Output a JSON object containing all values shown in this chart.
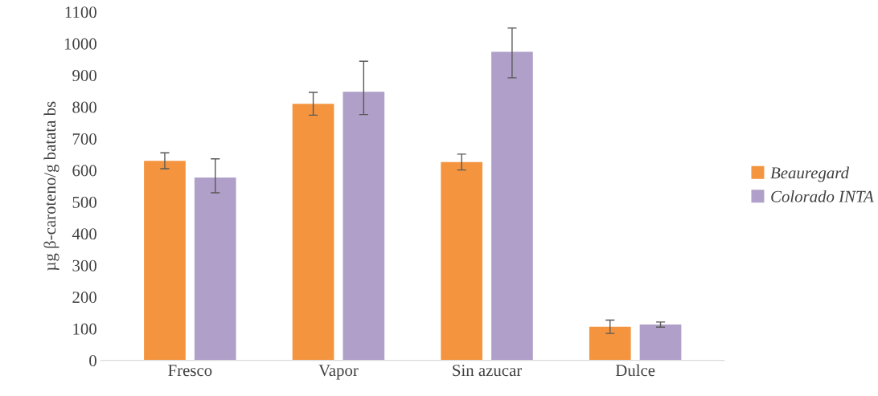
{
  "chart_data": {
    "type": "bar",
    "ylabel": "µg β-caroteno/g batata bs",
    "categories": [
      "Fresco",
      "Vapor",
      "Sin azucar",
      "Dulce"
    ],
    "series": [
      {
        "name": "Beauregard",
        "color": "#f4943f",
        "values": [
          630,
          810,
          626,
          106
        ],
        "errors": [
          25,
          36,
          25,
          21
        ]
      },
      {
        "name": "Colorado INTA",
        "color": "#b09fc8",
        "values": [
          577,
          848,
          974,
          113
        ],
        "errors": [
          [
            529,
            636
          ],
          [
            776,
            944
          ],
          [
            892,
            1049
          ],
          8
        ]
      }
    ],
    "ylim": [
      0,
      1100
    ],
    "yticks": [
      0,
      100,
      200,
      300,
      400,
      500,
      600,
      700,
      800,
      900,
      1000,
      1100
    ],
    "grid": false,
    "legend": "right"
  }
}
